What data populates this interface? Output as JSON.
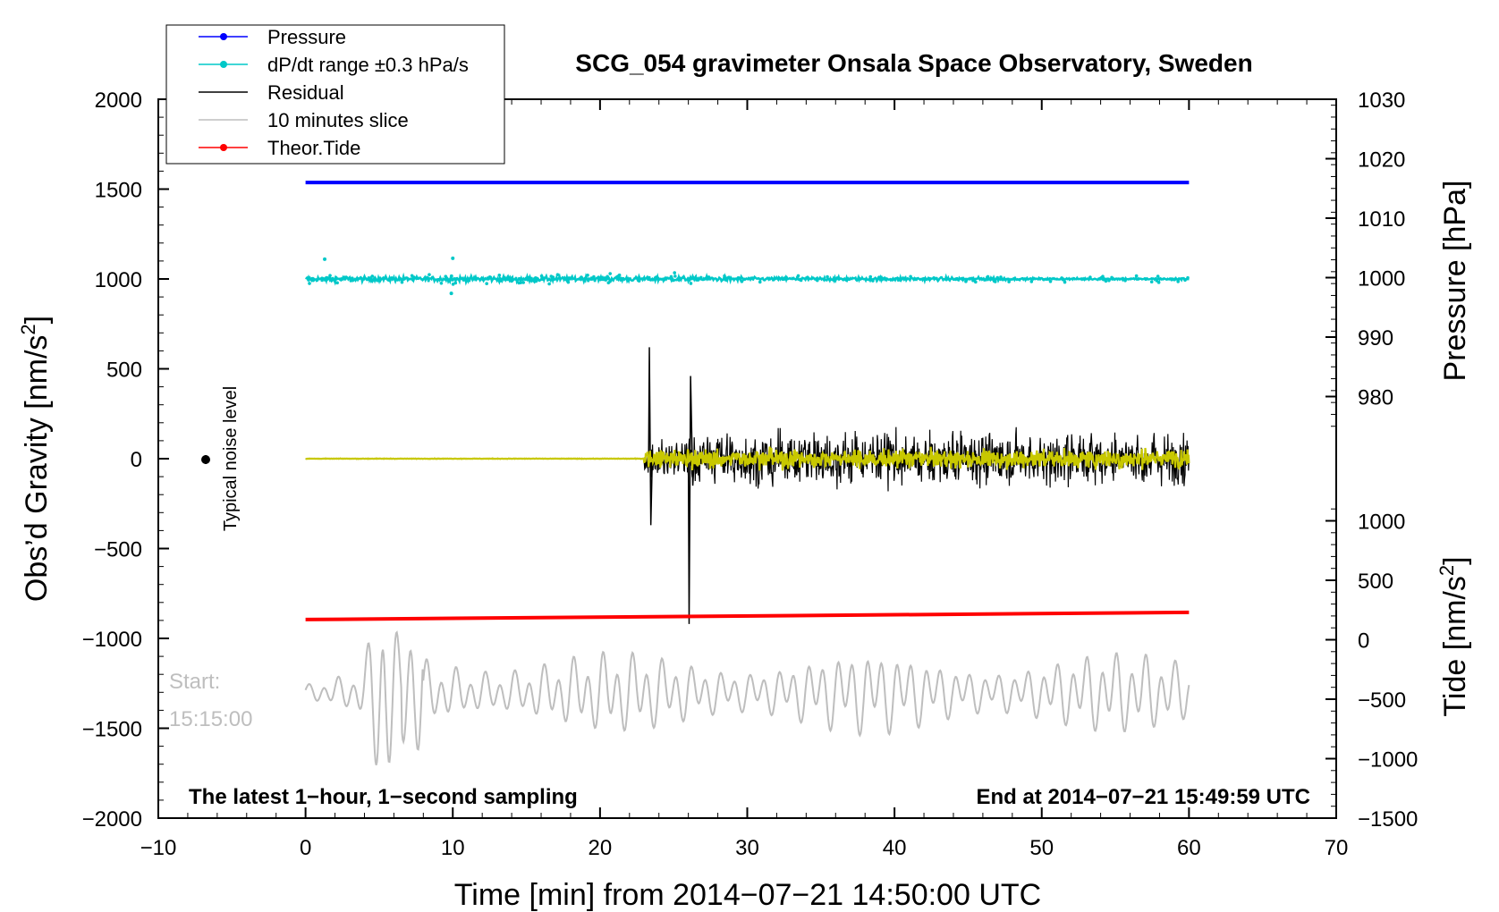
{
  "chart_data": {
    "type": "line",
    "title": "SCG_054 gravimeter Onsala Space Observatory, Sweden",
    "xlabel": "Time [min] from 2014−07−21 14:50:00 UTC",
    "ylabel_left": "Obs’d Gravity [nm/s",
    "ylabel_left_sup": "2",
    "ylabel_left_end": "]",
    "ylabel_right_top": "Pressure [hPa]",
    "ylabel_right_bottom": "Tide [nm/s",
    "ylabel_right_bottom_sup": "2",
    "ylabel_right_bottom_end": "]",
    "xlim": [
      -10,
      70
    ],
    "ylim": [
      -2000,
      2000
    ],
    "pressure_axis_lim": [
      980,
      1030
    ],
    "tide_axis_lim": [
      -1500,
      1000
    ],
    "x_ticks": [
      "−10",
      "0",
      "10",
      "20",
      "30",
      "40",
      "50",
      "60",
      "70"
    ],
    "x_tick_values": [
      -10,
      0,
      10,
      20,
      30,
      40,
      50,
      60,
      70
    ],
    "y_left_ticks": [
      "2000",
      "1500",
      "1000",
      "500",
      "0",
      "−500",
      "−1000",
      "−1500",
      "−2000"
    ],
    "y_left_tick_values": [
      2000,
      1500,
      1000,
      500,
      0,
      -500,
      -1000,
      -1500,
      -2000
    ],
    "y_pressure_ticks": [
      "1030",
      "1020",
      "1010",
      "1000",
      "990",
      "980"
    ],
    "y_pressure_tick_values": [
      1030,
      1020,
      1010,
      1000,
      990,
      980
    ],
    "y_tide_ticks": [
      "1000",
      "500",
      "0",
      "−500",
      "−1000",
      "−1500"
    ],
    "y_tide_tick_values": [
      1000,
      500,
      0,
      -500,
      -1000,
      -1500
    ],
    "legend_position": "top-left",
    "legend": [
      {
        "label": "Pressure",
        "color": "#0000ff",
        "marker": "dot"
      },
      {
        "label": "dP/dt range ±0.3 hPa/s",
        "color": "#00c8c8",
        "marker": "dot"
      },
      {
        "label": "Residual",
        "color": "#000000",
        "marker": "line"
      },
      {
        "label": "10 minutes slice",
        "color": "#bebebe",
        "marker": "line"
      },
      {
        "label": "Theor.Tide",
        "color": "#ff0000",
        "marker": "dot"
      }
    ],
    "series": [
      {
        "name": "Pressure",
        "axis": "pressure",
        "x": [
          0,
          60
        ],
        "values": [
          1016.0,
          1016.0
        ]
      },
      {
        "name": "dP/dt range",
        "axis": "left",
        "x_range": [
          0,
          60
        ],
        "center": 1000,
        "note": "dense scatter around 1000"
      },
      {
        "name": "Residual",
        "axis": "left",
        "x": [
          0,
          20,
          23,
          23.2,
          26,
          26.2,
          27,
          60
        ],
        "values": [
          0,
          0,
          0,
          620,
          -900,
          450,
          0,
          0
        ]
      },
      {
        "name": "10 minutes slice",
        "axis": "left",
        "x_range": [
          0,
          60
        ],
        "center": -1300
      },
      {
        "name": "Theor.Tide",
        "axis": "tide",
        "x": [
          0,
          60
        ],
        "values": [
          170,
          230
        ]
      }
    ],
    "annotations": {
      "noise_label": "Typical noise level",
      "start_label": "Start:",
      "start_time": "15:15:00",
      "bottom_left": "The latest 1−hour, 1−second sampling",
      "bottom_right": "End at 2014−07−21 15:49:59 UTC"
    },
    "colors": {
      "pressure": "#0000ff",
      "dpdt": "#00c8c8",
      "residual": "#000000",
      "residual_filtered": "#c8c800",
      "slice": "#bebebe",
      "tide": "#ff0000"
    }
  }
}
